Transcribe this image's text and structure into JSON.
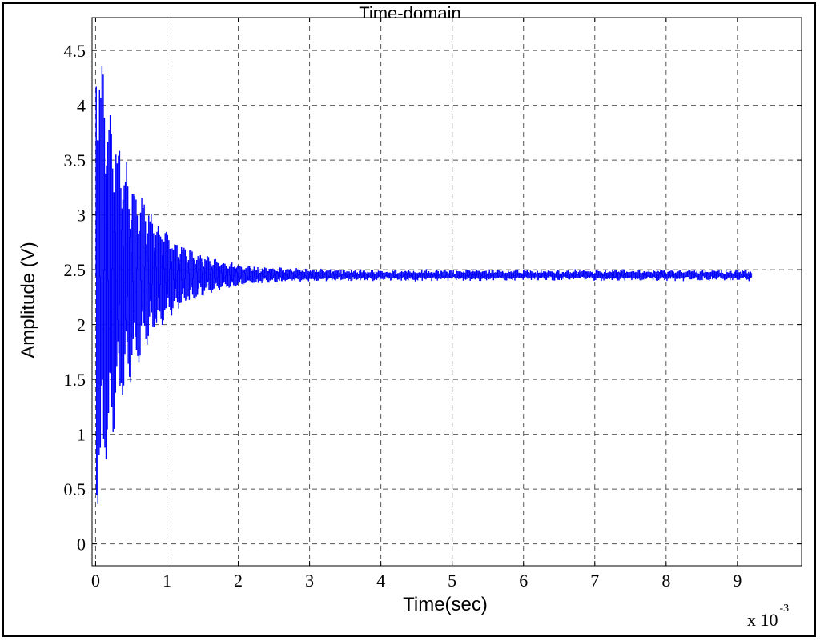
{
  "chart_data": {
    "type": "line",
    "title": "Time-domain",
    "xlabel": "Time(sec)",
    "ylabel": "Amplitude (V)",
    "x_multiplier_label": "x 10",
    "x_multiplier_exponent": "-3",
    "xlim": [
      -0.05,
      9.9
    ],
    "ylim": [
      -0.2,
      4.8
    ],
    "xticks": [
      0,
      1,
      2,
      3,
      4,
      5,
      6,
      7,
      8,
      9
    ],
    "xtick_labels": [
      "0",
      "1",
      "2",
      "3",
      "4",
      "5",
      "6",
      "7",
      "8",
      "9"
    ],
    "yticks": [
      0,
      0.5,
      1,
      1.5,
      2,
      2.5,
      3,
      3.5,
      4,
      4.5
    ],
    "ytick_labels": [
      "0",
      "0.5",
      "1",
      "1.5",
      "2",
      "2.5",
      "3",
      "3.5",
      "4",
      "4.5"
    ],
    "grid": true,
    "grid_style": "dashed",
    "series": [
      {
        "color": "#0000ff",
        "description_of_signal": "damped oscillation settling to ~2.45 V",
        "x_start": 0,
        "x_end": 9.2,
        "steady_state": 2.45,
        "initial_envelope": 2.3,
        "decay_time": 0.55
      }
    ]
  }
}
